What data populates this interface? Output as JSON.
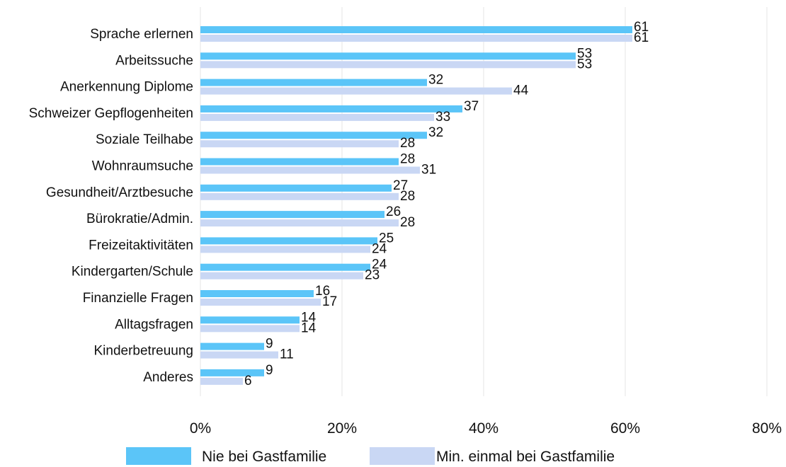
{
  "chart_data": {
    "type": "bar",
    "orientation": "horizontal",
    "categories": [
      "Sprache erlernen",
      "Arbeitssuche",
      "Anerkennung Diplome",
      "Schweizer Gepflogenheiten",
      "Soziale Teilhabe",
      "Wohnraumsuche",
      "Gesundheit/Arztbesuche",
      "Bürokratie/Admin.",
      "Freizeitaktivitäten",
      "Kindergarten/Schule",
      "Finanzielle Fragen",
      "Alltagsfragen",
      "Kinderbetreuung",
      "Anderes"
    ],
    "series": [
      {
        "name": "Nie bei Gastfamilie",
        "color": "#5bc5f8",
        "values": [
          61,
          53,
          32,
          37,
          32,
          28,
          27,
          26,
          25,
          24,
          16,
          14,
          9,
          9
        ]
      },
      {
        "name": "Min. einmal bei Gastfamilie",
        "color": "#c9d7f4",
        "values": [
          61,
          53,
          44,
          33,
          28,
          31,
          28,
          28,
          24,
          23,
          17,
          14,
          11,
          6
        ]
      }
    ],
    "xlim": [
      0,
      80
    ],
    "xticks": [
      "0%",
      "20%",
      "40%",
      "60%",
      "80%"
    ],
    "grid": "vertical",
    "legend_position": "bottom"
  }
}
